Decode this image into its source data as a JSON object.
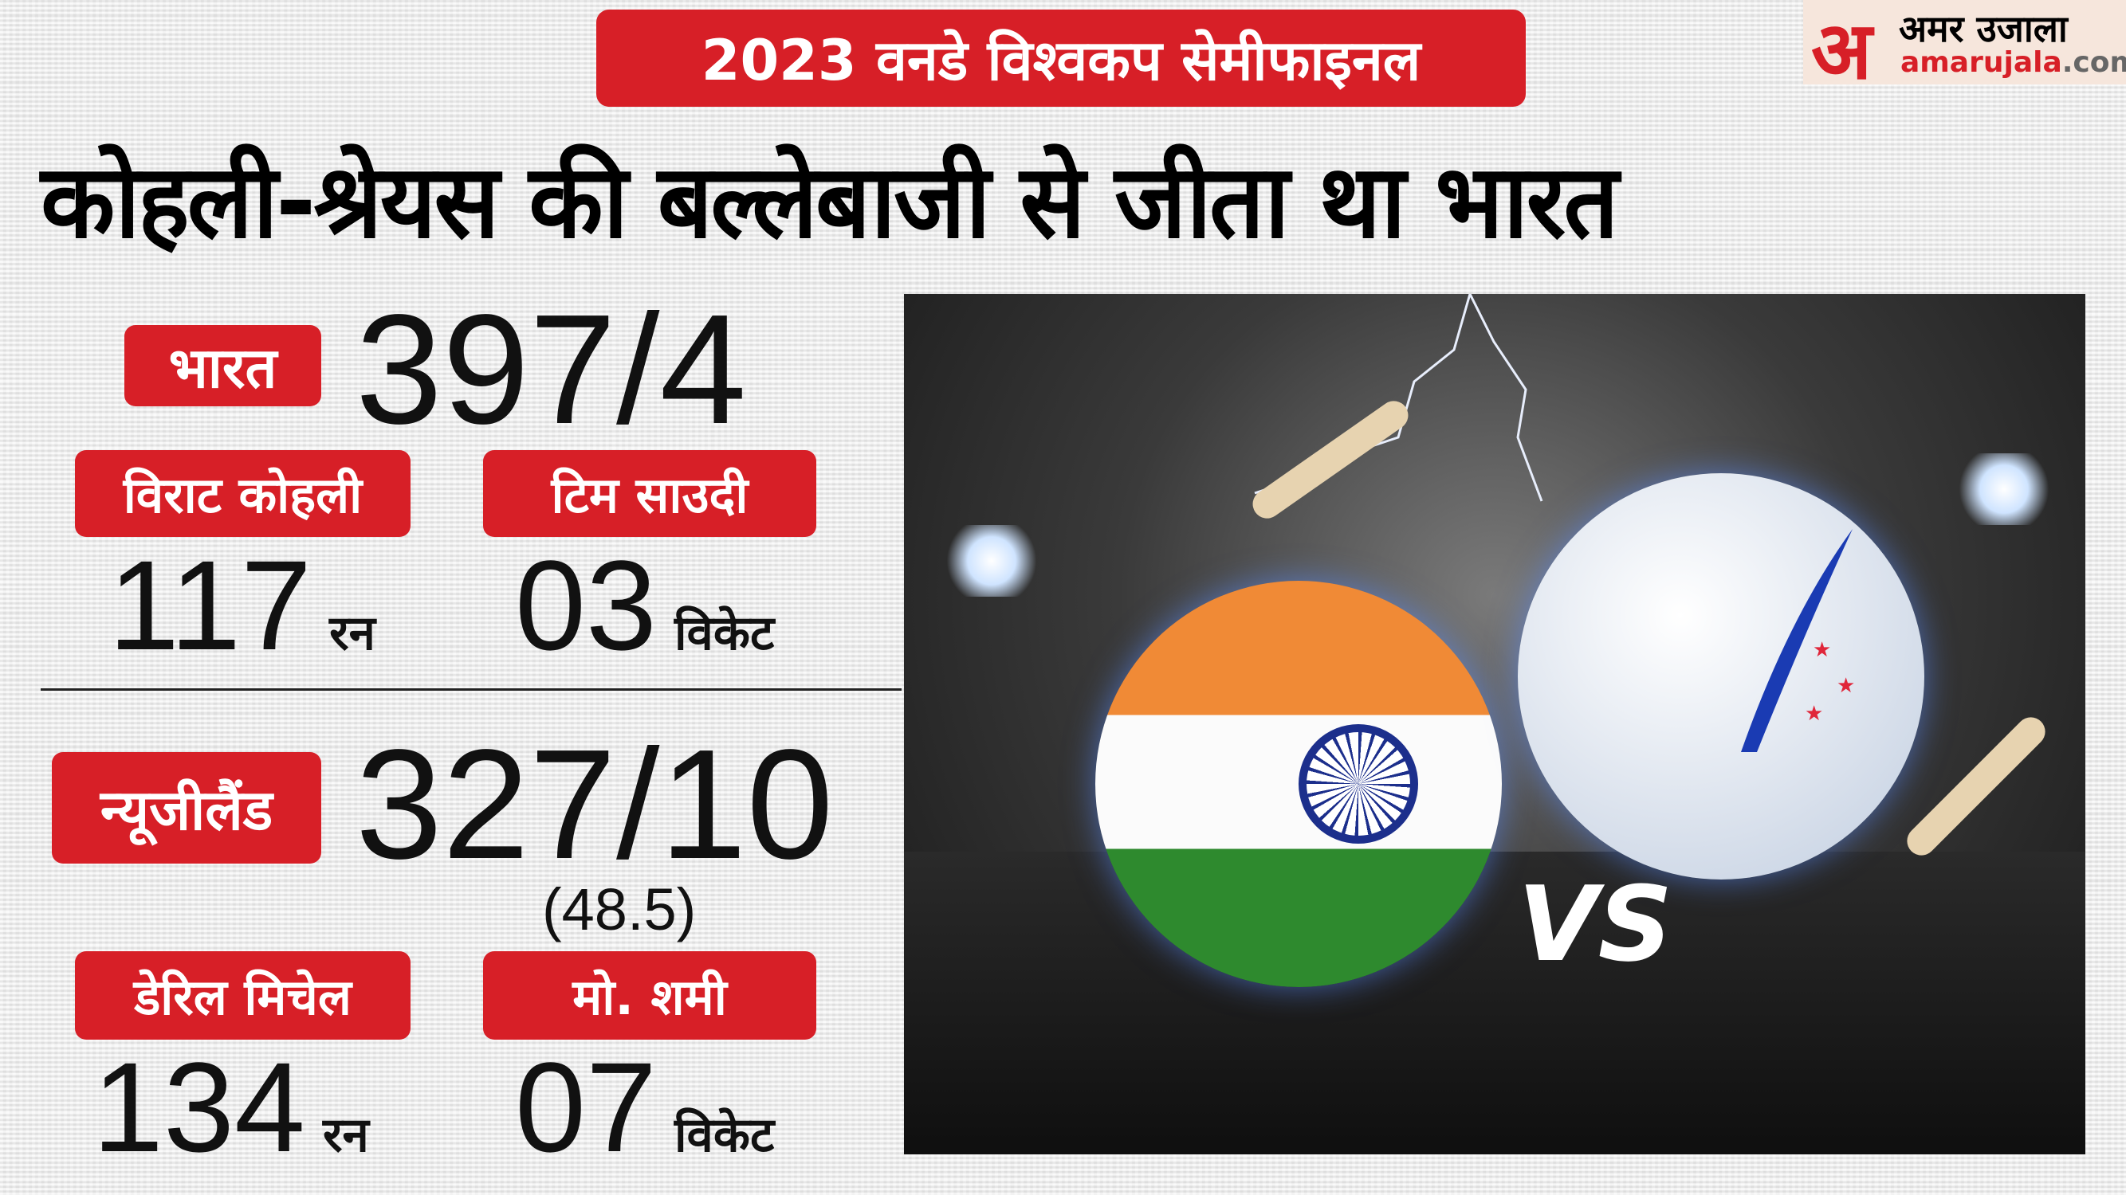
{
  "banner": "2023 वनडे विश्वकप सेमीफाइनल",
  "headline": "कोहली-श्रेयस की बल्लेबाजी से जीता था भारत",
  "logo": {
    "mark": "अ",
    "hindi": "अमर उजाला",
    "site_a": "amarujala",
    ".com": ".com",
    "site_b": ".com"
  },
  "india": {
    "team": "भारत",
    "score": "397/4",
    "batter": {
      "name": "विराट कोहली",
      "value": "117",
      "unit": "रन"
    },
    "bowler": {
      "name": "टिम साउदी",
      "value": "03",
      "unit": "विकेट"
    }
  },
  "nz": {
    "team": "न्यूजीलैंड",
    "score": "327/10",
    "overs": "(48.5)",
    "batter": {
      "name": "डेरिल मिचेल",
      "value": "134",
      "unit": "रन"
    },
    "bowler": {
      "name": "मो. शमी",
      "value": "07",
      "unit": "विकेट"
    }
  },
  "photo": {
    "vs": "VS"
  },
  "colors": {
    "accent": "#d71f27",
    "text": "#111111"
  }
}
